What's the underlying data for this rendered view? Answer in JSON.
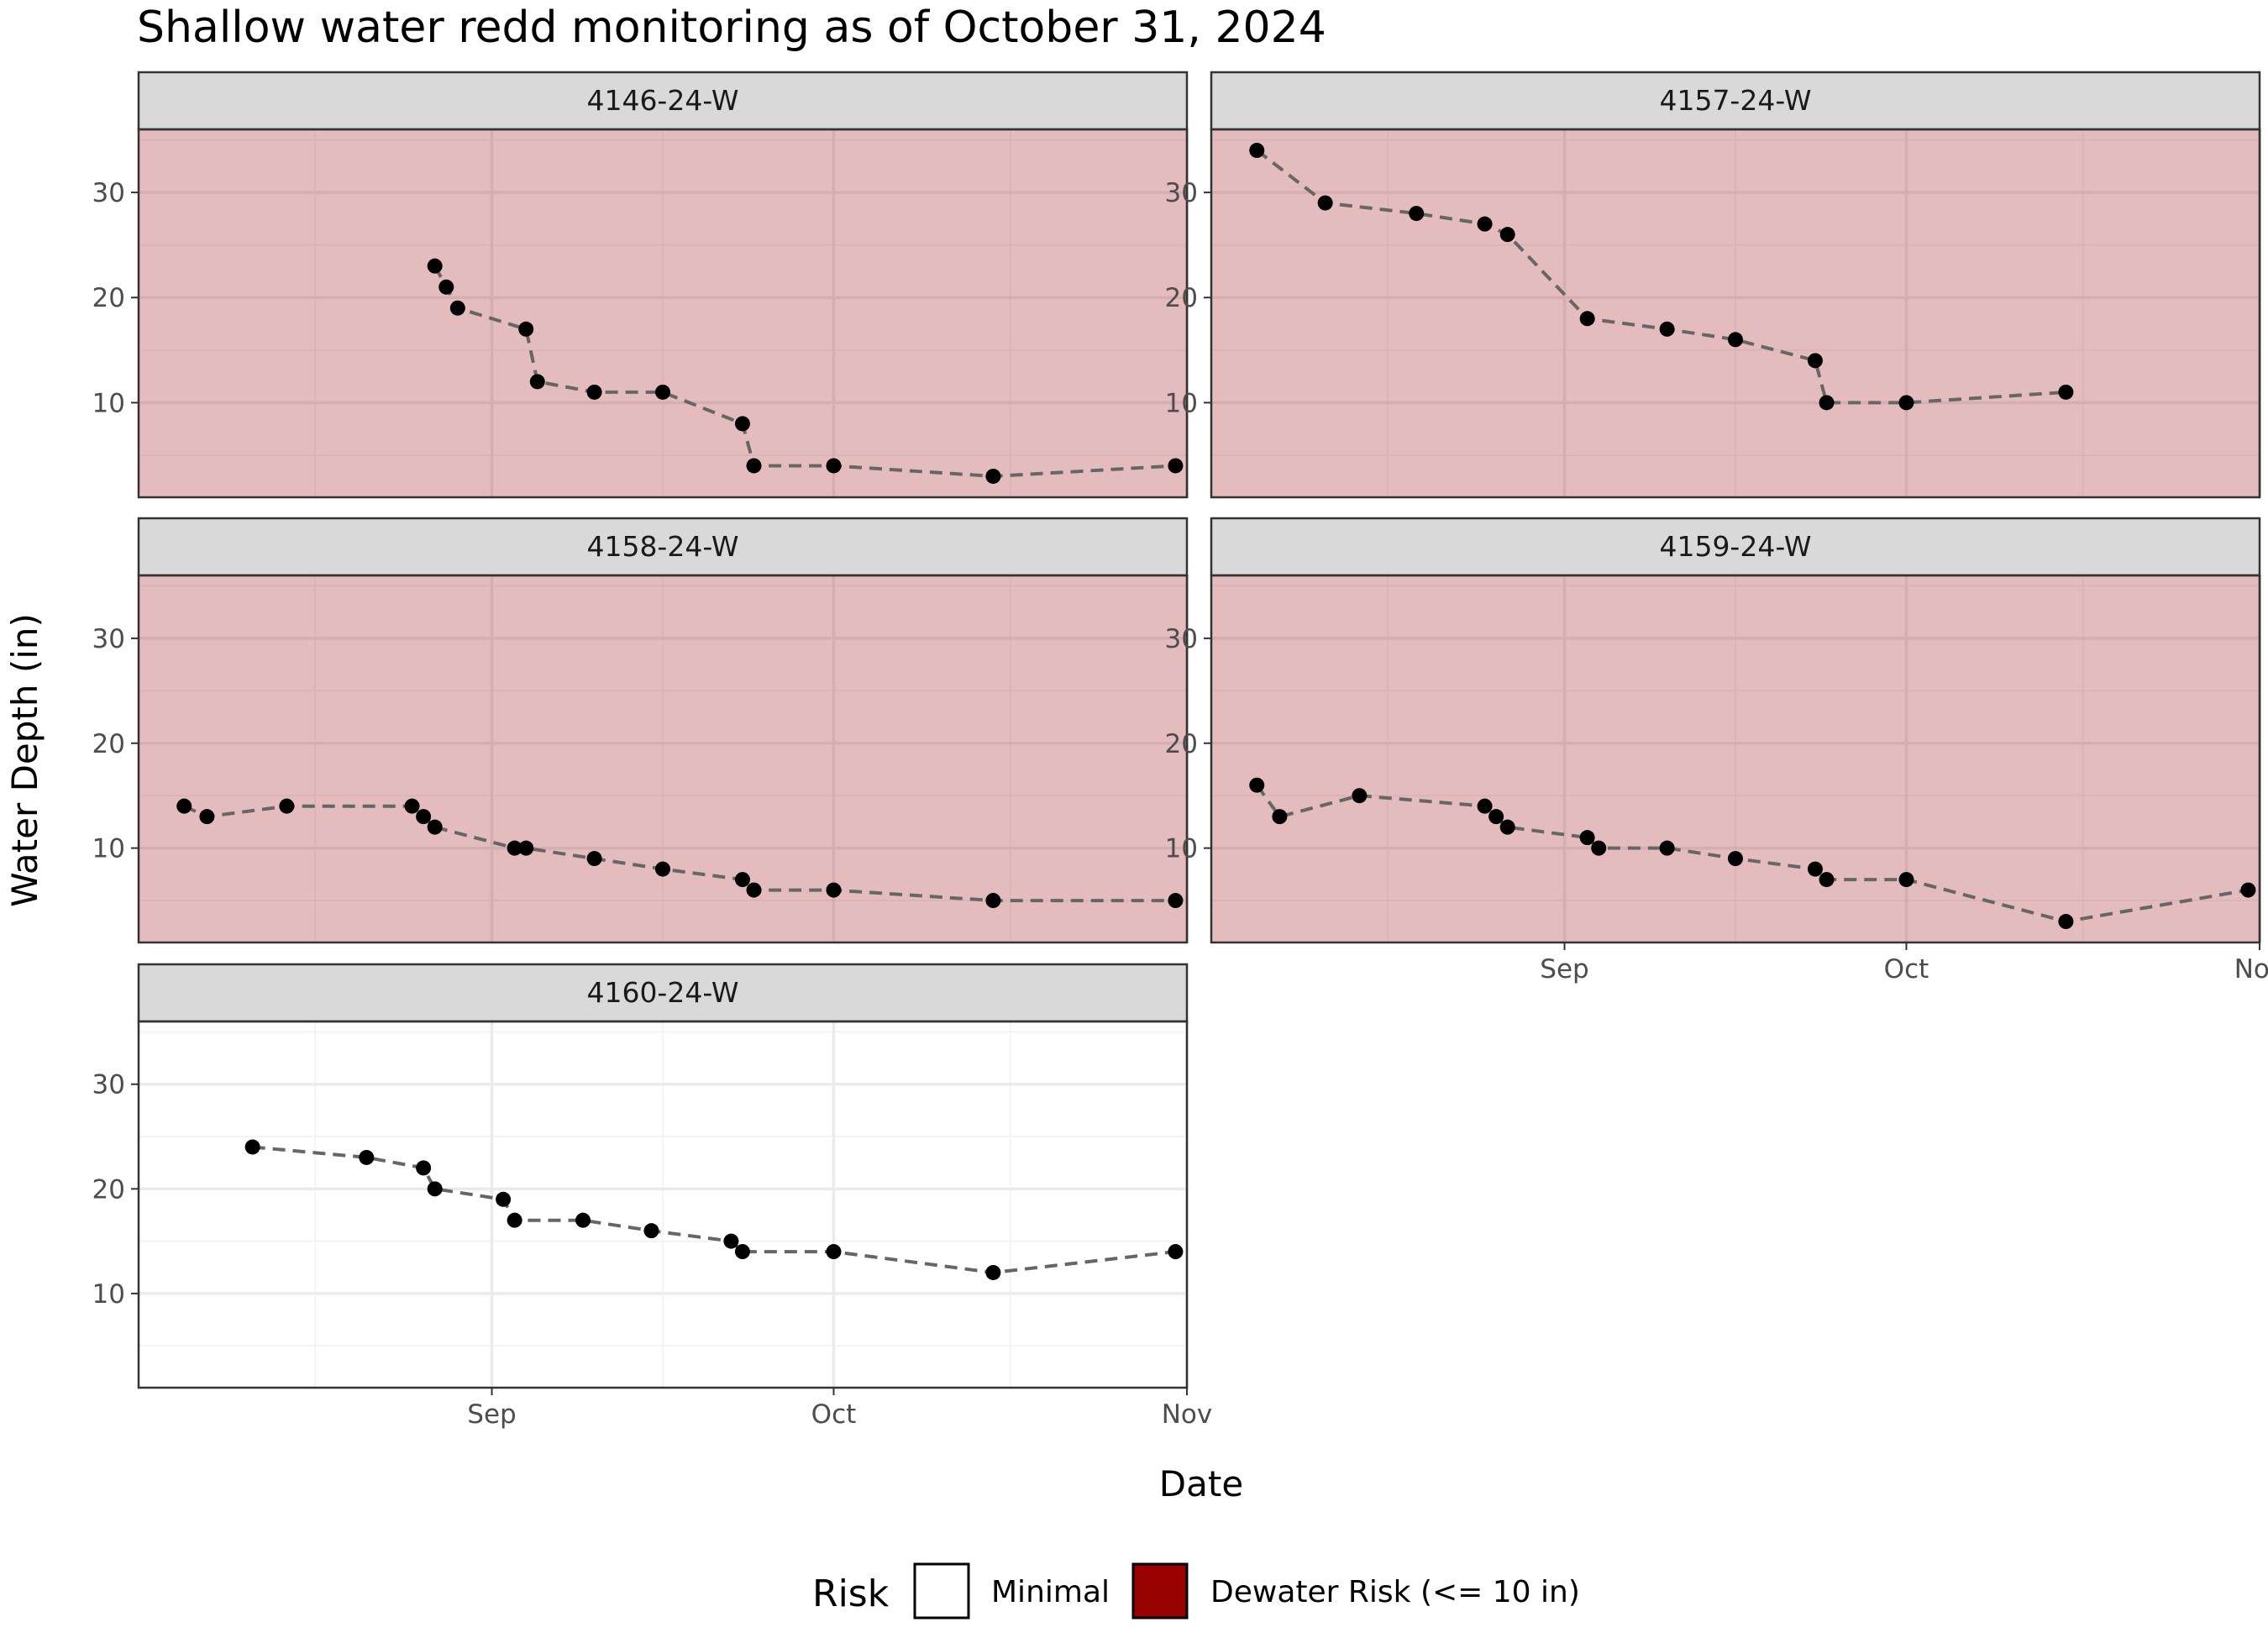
{
  "chart_data": {
    "type": "scatter",
    "title": "Shallow water redd monitoring as of October 31, 2024",
    "xlabel": "Date",
    "ylabel": "Water Depth (in)",
    "x_ticks": [
      {
        "date": "2024-09-01",
        "label": "Sep"
      },
      {
        "date": "2024-10-01",
        "label": "Oct"
      },
      {
        "date": "2024-11-01",
        "label": "Nov"
      }
    ],
    "y_ticks": [
      10,
      20,
      30
    ],
    "xlim": [
      "2024-08-01",
      "2024-11-01"
    ],
    "ylim": [
      1,
      36
    ],
    "grid": true,
    "legend": {
      "title": "Risk",
      "placement": "bottom",
      "items": [
        {
          "label": "Minimal",
          "color": "#ffffff"
        },
        {
          "label": "Dewater Risk (<= 10 in)",
          "color": "#990000"
        }
      ]
    },
    "panels": [
      {
        "name": "4146-24-W",
        "risk": "Dewater Risk (<= 10 in)",
        "points": [
          {
            "x": "2024-08-27",
            "y": 23
          },
          {
            "x": "2024-08-28",
            "y": 21
          },
          {
            "x": "2024-08-29",
            "y": 19
          },
          {
            "x": "2024-09-04",
            "y": 17
          },
          {
            "x": "2024-09-05",
            "y": 12
          },
          {
            "x": "2024-09-10",
            "y": 11
          },
          {
            "x": "2024-09-16",
            "y": 11
          },
          {
            "x": "2024-09-23",
            "y": 8
          },
          {
            "x": "2024-09-24",
            "y": 4
          },
          {
            "x": "2024-10-01",
            "y": 4
          },
          {
            "x": "2024-10-15",
            "y": 3
          },
          {
            "x": "2024-10-31",
            "y": 4
          }
        ]
      },
      {
        "name": "4157-24-W",
        "risk": "Dewater Risk (<= 10 in)",
        "points": [
          {
            "x": "2024-08-05",
            "y": 34
          },
          {
            "x": "2024-08-11",
            "y": 29
          },
          {
            "x": "2024-08-19",
            "y": 28
          },
          {
            "x": "2024-08-25",
            "y": 27
          },
          {
            "x": "2024-08-27",
            "y": 26
          },
          {
            "x": "2024-09-03",
            "y": 18
          },
          {
            "x": "2024-09-10",
            "y": 17
          },
          {
            "x": "2024-09-16",
            "y": 16
          },
          {
            "x": "2024-09-23",
            "y": 14
          },
          {
            "x": "2024-09-24",
            "y": 10
          },
          {
            "x": "2024-10-01",
            "y": 10
          },
          {
            "x": "2024-10-15",
            "y": 11
          }
        ]
      },
      {
        "name": "4158-24-W",
        "risk": "Dewater Risk (<= 10 in)",
        "points": [
          {
            "x": "2024-08-05",
            "y": 14
          },
          {
            "x": "2024-08-07",
            "y": 13
          },
          {
            "x": "2024-08-14",
            "y": 14
          },
          {
            "x": "2024-08-25",
            "y": 14
          },
          {
            "x": "2024-08-26",
            "y": 13
          },
          {
            "x": "2024-08-27",
            "y": 12
          },
          {
            "x": "2024-09-03",
            "y": 10
          },
          {
            "x": "2024-09-04",
            "y": 10
          },
          {
            "x": "2024-09-10",
            "y": 9
          },
          {
            "x": "2024-09-16",
            "y": 8
          },
          {
            "x": "2024-09-23",
            "y": 7
          },
          {
            "x": "2024-09-24",
            "y": 6
          },
          {
            "x": "2024-10-01",
            "y": 6
          },
          {
            "x": "2024-10-15",
            "y": 5
          },
          {
            "x": "2024-10-31",
            "y": 5
          }
        ]
      },
      {
        "name": "4159-24-W",
        "risk": "Dewater Risk (<= 10 in)",
        "points": [
          {
            "x": "2024-08-05",
            "y": 16
          },
          {
            "x": "2024-08-07",
            "y": 13
          },
          {
            "x": "2024-08-14",
            "y": 15
          },
          {
            "x": "2024-08-25",
            "y": 14
          },
          {
            "x": "2024-08-26",
            "y": 13
          },
          {
            "x": "2024-08-27",
            "y": 12
          },
          {
            "x": "2024-09-03",
            "y": 11
          },
          {
            "x": "2024-09-04",
            "y": 10
          },
          {
            "x": "2024-09-10",
            "y": 10
          },
          {
            "x": "2024-09-16",
            "y": 9
          },
          {
            "x": "2024-09-23",
            "y": 8
          },
          {
            "x": "2024-09-24",
            "y": 7
          },
          {
            "x": "2024-10-01",
            "y": 7
          },
          {
            "x": "2024-10-15",
            "y": 3
          },
          {
            "x": "2024-10-31",
            "y": 6
          }
        ]
      },
      {
        "name": "4160-24-W",
        "risk": "Minimal",
        "points": [
          {
            "x": "2024-08-11",
            "y": 24
          },
          {
            "x": "2024-08-21",
            "y": 23
          },
          {
            "x": "2024-08-26",
            "y": 22
          },
          {
            "x": "2024-08-27",
            "y": 20
          },
          {
            "x": "2024-09-02",
            "y": 19
          },
          {
            "x": "2024-09-03",
            "y": 17
          },
          {
            "x": "2024-09-09",
            "y": 17
          },
          {
            "x": "2024-09-15",
            "y": 16
          },
          {
            "x": "2024-09-22",
            "y": 15
          },
          {
            "x": "2024-09-23",
            "y": 14
          },
          {
            "x": "2024-10-01",
            "y": 14
          },
          {
            "x": "2024-10-15",
            "y": 12
          },
          {
            "x": "2024-10-31",
            "y": 14
          }
        ]
      }
    ],
    "colors": {
      "risk_fill": "#e4bcbe",
      "risk_grid_major": "#d6adb0",
      "risk_grid_minor": "#ddb4b6",
      "minimal_grid_major": "#ebebeb",
      "minimal_grid_minor": "#f4f4f4",
      "strip_fill": "#d9d9d9",
      "line": "#666666",
      "point": "#000000"
    }
  }
}
